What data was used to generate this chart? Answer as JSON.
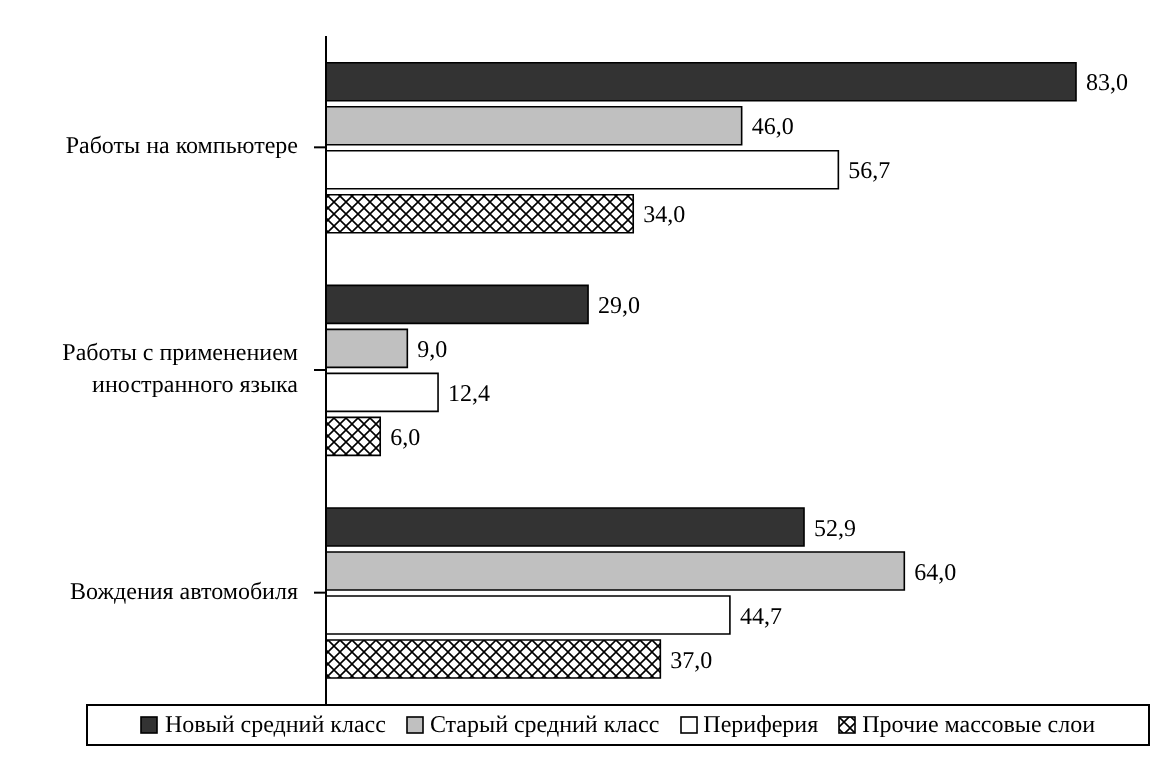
{
  "chart_data": {
    "type": "bar",
    "orientation": "horizontal",
    "categories": [
      "Работы на компьютере",
      "Работы с применением иностранного языка",
      "Вождения автомобиля"
    ],
    "series": [
      {
        "name": "Новый средний класс",
        "color": "#333333",
        "values": [
          83.0,
          29.0,
          52.9
        ],
        "value_labels": [
          "83,0",
          "29,0",
          "52,9"
        ]
      },
      {
        "name": "Старый средний класс",
        "color": "#c0c0c0",
        "values": [
          46.0,
          9.0,
          64.0
        ],
        "value_labels": [
          "46,0",
          "9,0",
          "64,0"
        ]
      },
      {
        "name": "Периферия",
        "color": "#ffffff",
        "values": [
          56.7,
          12.4,
          44.7
        ],
        "value_labels": [
          "56,7",
          "12,4",
          "44,7"
        ]
      },
      {
        "name": "Прочие массовые слои",
        "color": "#000000",
        "values": [
          34.0,
          6.0,
          37.0
        ],
        "value_labels": [
          "34,0",
          "6,0",
          "37,0"
        ]
      }
    ],
    "legend": "bottom",
    "grid": false
  }
}
